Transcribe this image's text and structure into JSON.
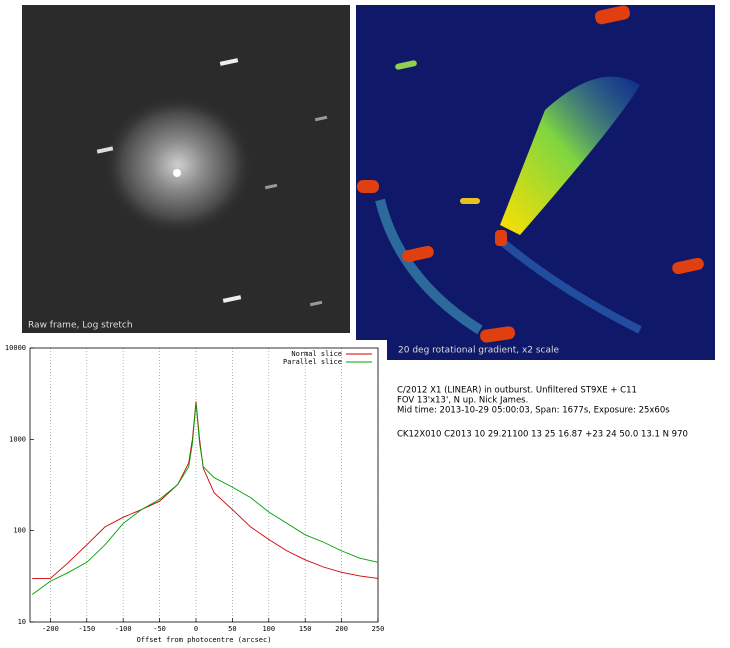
{
  "images": [
    {
      "caption": "Raw frame, Log stretch"
    },
    {
      "caption": "20 deg rotational gradient, x2 scale"
    }
  ],
  "chart_data": {
    "type": "line",
    "x_label": "Offset from photocentre (arcsec)",
    "xlim": [
      -228,
      250
    ],
    "ylim": [
      10,
      10000
    ],
    "log_y": true,
    "xticks": [
      -200,
      -150,
      -100,
      -50,
      0,
      50,
      100,
      150,
      200,
      250
    ],
    "yticks": [
      10,
      100,
      1000,
      10000
    ],
    "grid": "x",
    "legend": "upper right",
    "x": [
      -225,
      -200,
      -175,
      -150,
      -125,
      -100,
      -75,
      -50,
      -25,
      -10,
      -5,
      0,
      5,
      10,
      25,
      50,
      75,
      100,
      125,
      150,
      175,
      200,
      225,
      250
    ],
    "series": [
      {
        "name": "Normal slice",
        "color": "#d00000",
        "values": [
          30,
          30,
          45,
          70,
          110,
          140,
          170,
          210,
          320,
          550,
          1000,
          2600,
          1000,
          480,
          260,
          170,
          110,
          80,
          60,
          48,
          40,
          35,
          32,
          30
        ]
      },
      {
        "name": "Parallel slice",
        "color": "#00a000",
        "values": [
          20,
          28,
          35,
          45,
          70,
          120,
          170,
          220,
          320,
          500,
          900,
          2500,
          900,
          500,
          380,
          300,
          230,
          160,
          120,
          90,
          75,
          60,
          50,
          45
        ]
      }
    ]
  },
  "notes": {
    "lines": [
      "C/2012 X1 (LINEAR) in outburst. Unfiltered ST9XE + C11",
      "FOV 13'x13', N up. Nick James.",
      "Mid time: 2013-10-29 05:00:03, Span: 1677s, Exposure: 25x60s"
    ],
    "catalog_line": "CK12X010  C2013 10 29.21100 13 25 16.87 +23 24 50.0   13.1 N  970"
  }
}
